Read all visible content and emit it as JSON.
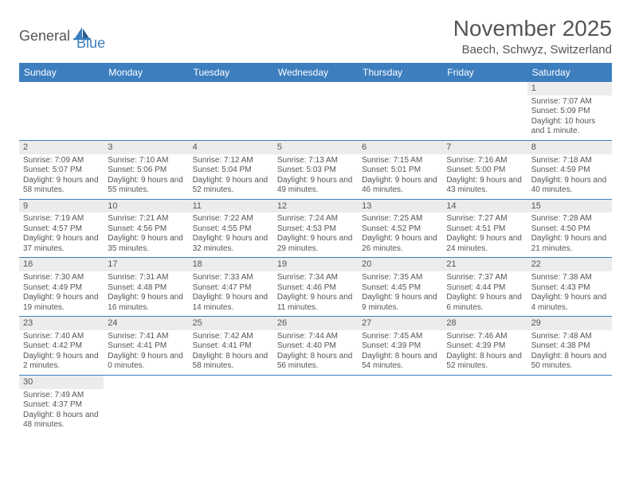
{
  "logo": {
    "part1": "General",
    "part2": "Blue"
  },
  "title": "November 2025",
  "location": "Baech, Schwyz, Switzerland",
  "colors": {
    "header_bg": "#3d7ebf",
    "header_fg": "#ffffff",
    "daynum_bg": "#ececec",
    "border": "#3d7ebf",
    "text": "#555555",
    "logo_blue": "#3d7ebf"
  },
  "daynames": [
    "Sunday",
    "Monday",
    "Tuesday",
    "Wednesday",
    "Thursday",
    "Friday",
    "Saturday"
  ],
  "weeks": [
    [
      null,
      null,
      null,
      null,
      null,
      null,
      {
        "n": "1",
        "sr": "7:07 AM",
        "ss": "5:09 PM",
        "dl": "10 hours and 1 minute."
      }
    ],
    [
      {
        "n": "2",
        "sr": "7:09 AM",
        "ss": "5:07 PM",
        "dl": "9 hours and 58 minutes."
      },
      {
        "n": "3",
        "sr": "7:10 AM",
        "ss": "5:06 PM",
        "dl": "9 hours and 55 minutes."
      },
      {
        "n": "4",
        "sr": "7:12 AM",
        "ss": "5:04 PM",
        "dl": "9 hours and 52 minutes."
      },
      {
        "n": "5",
        "sr": "7:13 AM",
        "ss": "5:03 PM",
        "dl": "9 hours and 49 minutes."
      },
      {
        "n": "6",
        "sr": "7:15 AM",
        "ss": "5:01 PM",
        "dl": "9 hours and 46 minutes."
      },
      {
        "n": "7",
        "sr": "7:16 AM",
        "ss": "5:00 PM",
        "dl": "9 hours and 43 minutes."
      },
      {
        "n": "8",
        "sr": "7:18 AM",
        "ss": "4:59 PM",
        "dl": "9 hours and 40 minutes."
      }
    ],
    [
      {
        "n": "9",
        "sr": "7:19 AM",
        "ss": "4:57 PM",
        "dl": "9 hours and 37 minutes."
      },
      {
        "n": "10",
        "sr": "7:21 AM",
        "ss": "4:56 PM",
        "dl": "9 hours and 35 minutes."
      },
      {
        "n": "11",
        "sr": "7:22 AM",
        "ss": "4:55 PM",
        "dl": "9 hours and 32 minutes."
      },
      {
        "n": "12",
        "sr": "7:24 AM",
        "ss": "4:53 PM",
        "dl": "9 hours and 29 minutes."
      },
      {
        "n": "13",
        "sr": "7:25 AM",
        "ss": "4:52 PM",
        "dl": "9 hours and 26 minutes."
      },
      {
        "n": "14",
        "sr": "7:27 AM",
        "ss": "4:51 PM",
        "dl": "9 hours and 24 minutes."
      },
      {
        "n": "15",
        "sr": "7:28 AM",
        "ss": "4:50 PM",
        "dl": "9 hours and 21 minutes."
      }
    ],
    [
      {
        "n": "16",
        "sr": "7:30 AM",
        "ss": "4:49 PM",
        "dl": "9 hours and 19 minutes."
      },
      {
        "n": "17",
        "sr": "7:31 AM",
        "ss": "4:48 PM",
        "dl": "9 hours and 16 minutes."
      },
      {
        "n": "18",
        "sr": "7:33 AM",
        "ss": "4:47 PM",
        "dl": "9 hours and 14 minutes."
      },
      {
        "n": "19",
        "sr": "7:34 AM",
        "ss": "4:46 PM",
        "dl": "9 hours and 11 minutes."
      },
      {
        "n": "20",
        "sr": "7:35 AM",
        "ss": "4:45 PM",
        "dl": "9 hours and 9 minutes."
      },
      {
        "n": "21",
        "sr": "7:37 AM",
        "ss": "4:44 PM",
        "dl": "9 hours and 6 minutes."
      },
      {
        "n": "22",
        "sr": "7:38 AM",
        "ss": "4:43 PM",
        "dl": "9 hours and 4 minutes."
      }
    ],
    [
      {
        "n": "23",
        "sr": "7:40 AM",
        "ss": "4:42 PM",
        "dl": "9 hours and 2 minutes."
      },
      {
        "n": "24",
        "sr": "7:41 AM",
        "ss": "4:41 PM",
        "dl": "9 hours and 0 minutes."
      },
      {
        "n": "25",
        "sr": "7:42 AM",
        "ss": "4:41 PM",
        "dl": "8 hours and 58 minutes."
      },
      {
        "n": "26",
        "sr": "7:44 AM",
        "ss": "4:40 PM",
        "dl": "8 hours and 56 minutes."
      },
      {
        "n": "27",
        "sr": "7:45 AM",
        "ss": "4:39 PM",
        "dl": "8 hours and 54 minutes."
      },
      {
        "n": "28",
        "sr": "7:46 AM",
        "ss": "4:39 PM",
        "dl": "8 hours and 52 minutes."
      },
      {
        "n": "29",
        "sr": "7:48 AM",
        "ss": "4:38 PM",
        "dl": "8 hours and 50 minutes."
      }
    ],
    [
      {
        "n": "30",
        "sr": "7:49 AM",
        "ss": "4:37 PM",
        "dl": "8 hours and 48 minutes."
      },
      null,
      null,
      null,
      null,
      null,
      null
    ]
  ],
  "labels": {
    "sunrise": "Sunrise:",
    "sunset": "Sunset:",
    "daylight": "Daylight:"
  }
}
